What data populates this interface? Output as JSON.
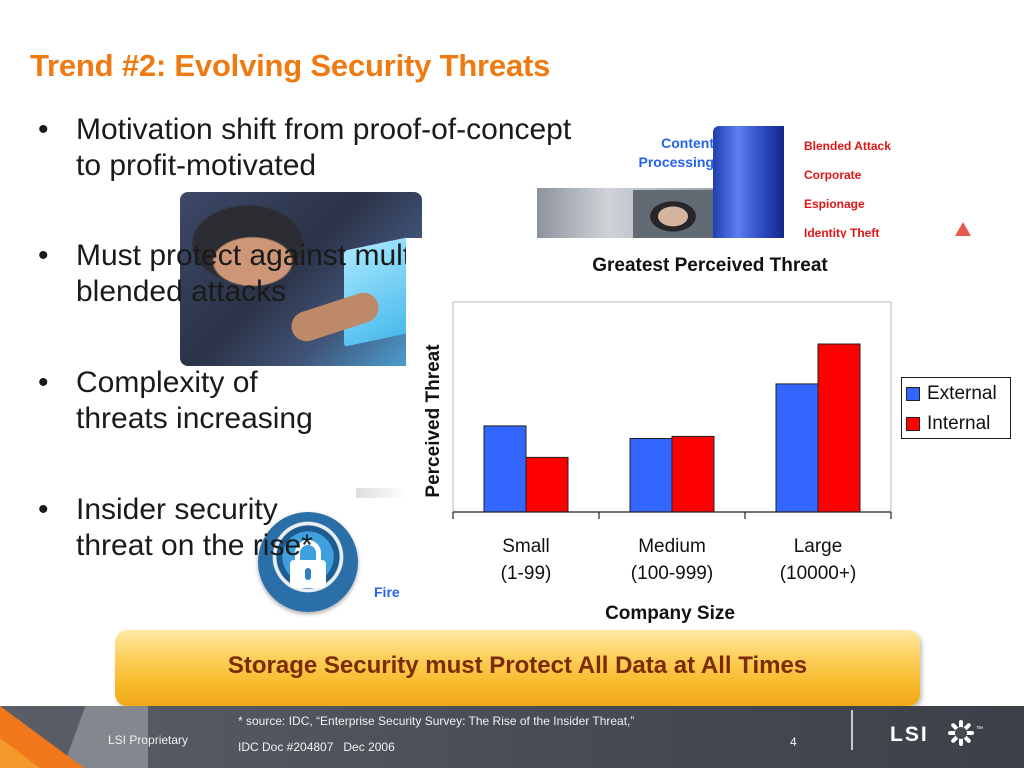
{
  "slide": {
    "title": "Trend #2: Evolving Security Threats",
    "bullets": [
      {
        "lines": [
          "Motivation shift from proof-of-concept",
          "to profit-motivated"
        ]
      },
      {
        "lines": [
          "Must protect against multiple",
          "blended attacks"
        ]
      },
      {
        "lines": [
          "Complexity of",
          "threats increasing"
        ]
      },
      {
        "lines": [
          "Insider security",
          "threat on the rise*"
        ]
      }
    ]
  },
  "graphics": {
    "content_processing": [
      "Content",
      "Processing"
    ],
    "threat_list": [
      "Blended Attack",
      "Corporate",
      "Espionage",
      "Identity Theft"
    ],
    "fire_text": "Fire"
  },
  "chart_data": {
    "type": "bar",
    "title": "Greatest Perceived Threat",
    "xlabel": "Company Size",
    "ylabel": "Perceived Threat",
    "categories": [
      [
        "Small",
        "(1-99)"
      ],
      [
        "Medium",
        "(100-999)"
      ],
      [
        "Large",
        "(10000+)"
      ]
    ],
    "series": [
      {
        "name": "External",
        "color": "#3366ff",
        "values": [
          41,
          35,
          61
        ]
      },
      {
        "name": "Internal",
        "color": "#ff0000",
        "values": [
          26,
          36,
          80
        ]
      }
    ],
    "ylim": [
      0,
      100
    ],
    "grid": false,
    "legend": "right"
  },
  "banner": {
    "text": "Storage Security must Protect All Data at All Times"
  },
  "footer": {
    "proprietary": "LSI Proprietary",
    "source_line1": "* source: IDC, “Enterprise Security Survey: The Rise of the Insider Threat,”",
    "source_doc": "IDC Doc #204807",
    "source_date": "Dec 2006",
    "page_number": "4",
    "logo": "LSI",
    "logo_icon": "lsi-starburst-icon"
  }
}
